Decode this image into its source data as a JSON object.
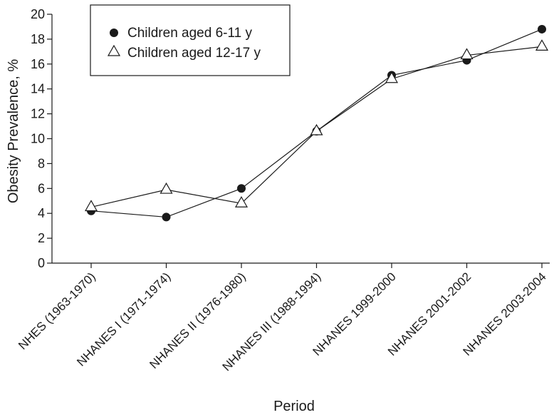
{
  "chart_data": {
    "type": "line",
    "categories": [
      "NHES (1963-1970)",
      "NHANES I (1971-1974)",
      "NHANES II (1976-1980)",
      "NHANES III (1988-1994)",
      "NHANES 1999-2000",
      "NHANES 2001-2002",
      "NHANES 2003-2004"
    ],
    "series": [
      {
        "name": "Children aged 6-11 y",
        "marker": "filled-circle",
        "values": [
          4.2,
          3.7,
          6.0,
          10.6,
          15.1,
          16.3,
          18.8
        ]
      },
      {
        "name": "Children aged 12-17 y",
        "marker": "open-triangle",
        "values": [
          4.5,
          5.9,
          4.8,
          10.6,
          14.8,
          16.7,
          17.4
        ]
      }
    ],
    "xlabel": "Period",
    "ylabel": "Obesity Prevalence, %",
    "ylim": [
      0,
      20
    ],
    "yticks": [
      0,
      2,
      4,
      6,
      8,
      10,
      12,
      14,
      16,
      18,
      20
    ],
    "grid": false,
    "legend_position": "top-left",
    "colors": {
      "line": "#1a1a1a",
      "axis": "#1a1a1a",
      "marker_fill_open": "#ffffff"
    }
  }
}
